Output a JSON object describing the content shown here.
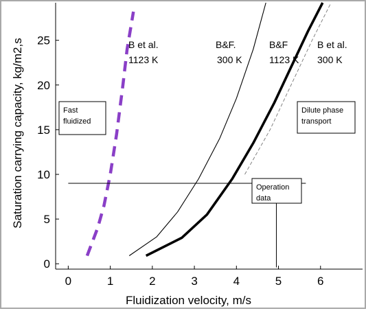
{
  "chart_data": {
    "type": "line",
    "xlabel": "Fluidization velocity, m/s",
    "ylabel": "Saturation carrying capacity, kg/m2,s",
    "xlim": [
      -0.3,
      7.0
    ],
    "ylim": [
      -0.6,
      29.2
    ],
    "xticks": [
      "0",
      "1",
      "2",
      "3",
      "4",
      "5",
      "6"
    ],
    "yticks": [
      "0",
      "5",
      "10",
      "15",
      "20",
      "25"
    ],
    "grid": false,
    "series": [
      {
        "name": "B et al. 1123 K",
        "label_lines": [
          "B et al.",
          "1123 K"
        ],
        "style": "dashed-thick",
        "color": "#8a3fc7",
        "x": [
          0.45,
          0.7,
          0.85,
          1.0,
          1.15,
          1.3,
          1.4,
          1.55
        ],
        "y": [
          0.9,
          4.0,
          6.5,
          10.0,
          14.5,
          20.0,
          24.0,
          28.2
        ]
      },
      {
        "name": "B&F. 300 K",
        "label_lines": [
          "B&F.",
          "300 K"
        ],
        "style": "thin",
        "color": "#000000",
        "x": [
          1.45,
          2.1,
          2.6,
          3.1,
          3.6,
          4.0,
          4.4,
          4.7
        ],
        "y": [
          0.9,
          3.0,
          5.8,
          9.5,
          14.0,
          18.5,
          24.0,
          29.2
        ]
      },
      {
        "name": "B&F 1123 K",
        "label_lines": [
          "B&F",
          "1123 K"
        ],
        "style": "thick",
        "color": "#000000",
        "x": [
          1.85,
          2.7,
          3.3,
          3.9,
          4.4,
          4.9,
          5.3,
          5.7,
          6.05
        ],
        "y": [
          0.9,
          2.9,
          5.5,
          9.5,
          13.5,
          18.0,
          22.0,
          26.0,
          29.2
        ]
      },
      {
        "name": "B et al. 300 K",
        "label_lines": [
          "B et al.",
          "300 K"
        ],
        "style": "thin-dashed",
        "color": "#777777",
        "x": [
          4.2,
          4.8,
          5.3,
          5.8,
          6.25
        ],
        "y": [
          10.0,
          15.0,
          20.0,
          25.0,
          29.2
        ]
      }
    ],
    "reference_lines": [
      {
        "kind": "horizontal",
        "y": 9.0,
        "x_from": 0.0,
        "x_to": 5.65
      },
      {
        "kind": "vertical",
        "x": 4.95,
        "y_from": -0.4,
        "y_to": 7.5
      }
    ],
    "annotations": [
      {
        "id": "fast-fluidized",
        "lines": [
          "Fast",
          "fluidized"
        ],
        "boxed": true
      },
      {
        "id": "dilute-phase-transport",
        "lines": [
          "Dilute phase",
          "transport"
        ],
        "boxed": true
      },
      {
        "id": "operation-data",
        "lines": [
          "Operation",
          "data"
        ],
        "boxed": true
      }
    ]
  }
}
